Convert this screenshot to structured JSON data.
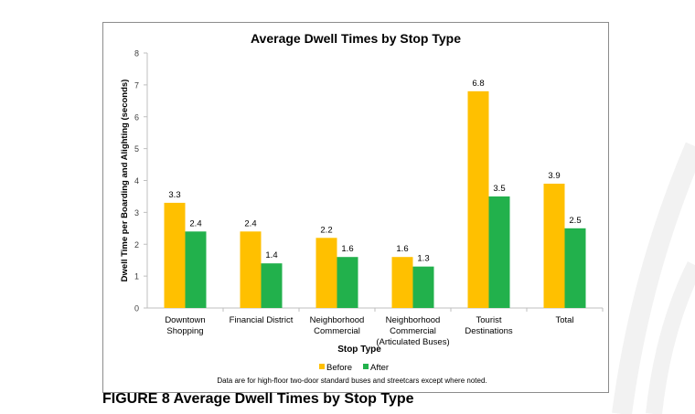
{
  "chart_data": {
    "type": "bar",
    "title": "Average Dwell Times by Stop Type",
    "xlabel": "Stop Type",
    "ylabel": "Dwell Time per Boarding and Alighting (seconds)",
    "ylim": [
      0,
      8
    ],
    "yticks": [
      "0",
      "1",
      "2",
      "3",
      "4",
      "5",
      "6",
      "7",
      "8"
    ],
    "categories": [
      [
        "Downtown",
        "Shopping"
      ],
      [
        "Financial District"
      ],
      [
        "Neighborhood",
        "Commercial"
      ],
      [
        "Neighborhood",
        "Commercial",
        "(Articulated Buses)"
      ],
      [
        "Tourist",
        "Destinations"
      ],
      [
        "Total"
      ]
    ],
    "series": [
      {
        "name": "Before",
        "color": "#ffc000",
        "values": [
          3.3,
          2.4,
          2.2,
          1.6,
          6.8,
          3.9
        ]
      },
      {
        "name": "After",
        "color": "#22b14c",
        "values": [
          2.4,
          1.4,
          1.6,
          1.3,
          3.5,
          2.5
        ]
      }
    ],
    "grid": false,
    "legend": "bottom",
    "note": "Data are for high-floor two-door standard buses and streetcars except where noted."
  },
  "caption": "FIGURE 8 Average Dwell Times by Stop Type"
}
